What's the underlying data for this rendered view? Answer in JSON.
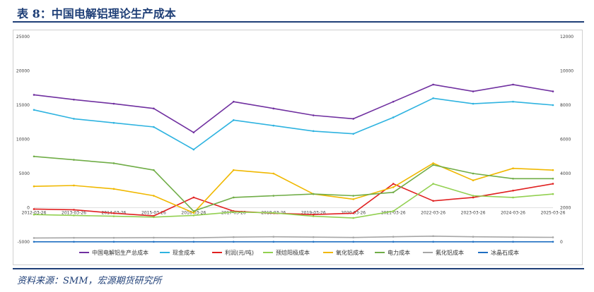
{
  "header": {
    "title": "表 8：中国电解铝理论生产成本"
  },
  "footer": {
    "source": "资料来源：SMM，宏源期货研究所"
  },
  "chart_data": {
    "type": "line",
    "title": "",
    "xlabel": "",
    "ylabel": "",
    "ylim_left": [
      -5000,
      25000
    ],
    "ylim_right": [
      0,
      12000
    ],
    "yticks_left": [
      -5000,
      0,
      5000,
      10000,
      15000,
      20000,
      25000
    ],
    "yticks_right": [
      0,
      2000,
      4000,
      6000,
      8000,
      10000,
      12000
    ],
    "x": [
      "2012-03-26",
      "2013-03-26",
      "2014-03-26",
      "2015-03-26",
      "2016-03-26",
      "2017-03-26",
      "2018-03-26",
      "2019-03-26",
      "2020-03-26",
      "2021-03-26",
      "2022-03-26",
      "2023-03-26",
      "2024-03-26",
      "2025-03-26"
    ],
    "xticks": [
      "2012-03-26",
      "2013-03-26",
      "2014-03-26",
      "2015-03-26",
      "2016-03-26",
      "2017-03-26",
      "2018-03-26",
      "2019-03-26",
      "2020-03-26",
      "2021-03-26",
      "2022-03-26",
      "2023-03-26",
      "2024-03-26",
      "2025-03-26"
    ],
    "grid": false,
    "legend_position": "bottom",
    "series": [
      {
        "name": "中国电解铝生产总成本",
        "axis": "left",
        "color": "#7030a0",
        "values": [
          16500,
          15800,
          15200,
          14500,
          11000,
          15500,
          14500,
          13500,
          13000,
          15500,
          18000,
          17000,
          18000,
          17000
        ]
      },
      {
        "name": "现金成本",
        "axis": "left",
        "color": "#2eb3e0",
        "values": [
          14300,
          13000,
          12400,
          11800,
          8500,
          12800,
          12000,
          11200,
          10800,
          13200,
          16000,
          15200,
          15500,
          15000
        ]
      },
      {
        "name": "利润(元/吨)",
        "axis": "left",
        "color": "#e02020",
        "values": [
          -200,
          -300,
          -800,
          -1200,
          1500,
          -500,
          -800,
          -1000,
          -800,
          3500,
          1000,
          1500,
          2500,
          3500
        ]
      },
      {
        "name": "预焙阳极成本",
        "axis": "right",
        "color": "#92d050",
        "values": [
          1600,
          1550,
          1500,
          1450,
          1550,
          1750,
          1700,
          1500,
          1400,
          1800,
          3400,
          2700,
          2600,
          2800
        ]
      },
      {
        "name": "氧化铝成本",
        "axis": "right",
        "color": "#f0b800",
        "values": [
          3250,
          3300,
          3100,
          2700,
          1700,
          4200,
          4000,
          2800,
          2500,
          3200,
          4600,
          3600,
          4300,
          4200
        ]
      },
      {
        "name": "电力成本",
        "axis": "right",
        "color": "#70ad47",
        "values": [
          5000,
          4800,
          4600,
          4200,
          1800,
          2600,
          2700,
          2800,
          2700,
          2900,
          4500,
          4000,
          3700,
          3700
        ]
      },
      {
        "name": "氟化铝成本",
        "axis": "right",
        "color": "#a6a6a6",
        "values": [
          230,
          240,
          240,
          250,
          240,
          280,
          300,
          280,
          260,
          300,
          340,
          300,
          280,
          270
        ]
      },
      {
        "name": "冰晶石成本",
        "axis": "right",
        "color": "#1f6fc2",
        "values": [
          10,
          10,
          10,
          10,
          10,
          10,
          10,
          10,
          10,
          10,
          10,
          10,
          10,
          10
        ]
      }
    ]
  }
}
